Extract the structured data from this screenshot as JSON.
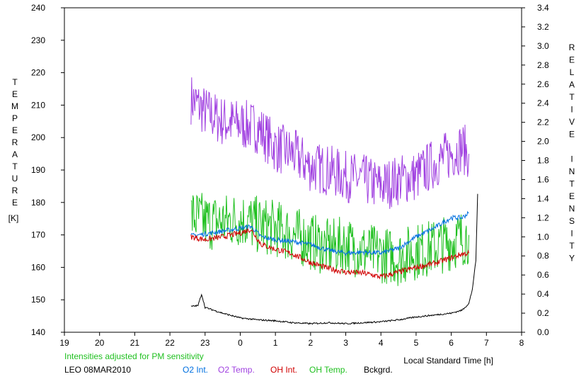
{
  "chart_data": {
    "type": "line",
    "xlabel": "Local Standard Time [h]",
    "ylabel_left": "TEMPERATURE",
    "ylabel_left_unit": "[K]",
    "ylabel_right": "RELATIVE INTENSITY",
    "x_ticks": [
      "19",
      "20",
      "21",
      "22",
      "23",
      "0",
      "1",
      "2",
      "3",
      "4",
      "5",
      "6",
      "7",
      "8"
    ],
    "xlim": [
      19,
      32
    ],
    "ylim_left": [
      140,
      240
    ],
    "y_ticks_left": [
      "140",
      "150",
      "160",
      "170",
      "180",
      "190",
      "200",
      "210",
      "220",
      "230",
      "240"
    ],
    "ylim_right": [
      0.0,
      3.4
    ],
    "y_ticks_right": [
      "0.0",
      "0.2",
      "0.4",
      "0.6",
      "0.8",
      "1.0",
      "1.2",
      "1.4",
      "1.6",
      "1.8",
      "2.0",
      "2.2",
      "2.4",
      "2.6",
      "2.8",
      "3.0",
      "3.2",
      "3.4"
    ],
    "note": "Intensities adjusted for PM sensitivity",
    "station": "LEO 08MAR2010",
    "grid": false,
    "series": [
      {
        "name": "O2 Int.",
        "axis": "right",
        "color": "#0070e0",
        "x": [
          22.6,
          23.0,
          23.5,
          24.0,
          24.3,
          24.6,
          25.0,
          25.5,
          26.0,
          26.5,
          27.0,
          27.5,
          28.0,
          28.5,
          29.0,
          29.5,
          30.0,
          30.3,
          30.5
        ],
        "y": [
          1.01,
          1.03,
          1.06,
          1.09,
          1.11,
          1.0,
          0.97,
          0.95,
          0.92,
          0.86,
          0.83,
          0.84,
          0.83,
          0.88,
          1.0,
          1.09,
          1.2,
          1.2,
          1.25
        ]
      },
      {
        "name": "O2 Temp.",
        "axis": "left",
        "color": "#a040e0",
        "x": [
          22.6,
          23.0,
          23.5,
          24.0,
          24.5,
          25.0,
          25.5,
          26.0,
          26.5,
          27.0,
          27.5,
          28.0,
          28.5,
          29.0,
          29.5,
          30.0,
          30.3,
          30.5
        ],
        "y": [
          212,
          208,
          205,
          204,
          203,
          197,
          195,
          191,
          190,
          188,
          187,
          185,
          187,
          188,
          192,
          195,
          197,
          195
        ]
      },
      {
        "name": "OH Int.",
        "axis": "right",
        "color": "#d00000",
        "x": [
          22.6,
          23.0,
          23.5,
          24.0,
          24.3,
          24.6,
          25.0,
          25.5,
          26.0,
          26.5,
          27.0,
          27.5,
          28.0,
          28.5,
          29.0,
          29.5,
          30.0,
          30.3,
          30.5
        ],
        "y": [
          1.0,
          0.97,
          1.0,
          1.04,
          1.08,
          0.92,
          0.87,
          0.82,
          0.73,
          0.67,
          0.63,
          0.62,
          0.58,
          0.63,
          0.68,
          0.72,
          0.78,
          0.82,
          0.83
        ]
      },
      {
        "name": "OH Temp.",
        "axis": "left",
        "color": "#20c020",
        "x": [
          22.6,
          23.0,
          23.5,
          24.0,
          24.5,
          25.0,
          25.5,
          26.0,
          26.5,
          27.0,
          27.5,
          28.0,
          28.5,
          29.0,
          29.5,
          30.0,
          30.3,
          30.5
        ],
        "y": [
          176,
          174,
          174,
          175,
          173,
          172,
          170,
          168,
          166,
          167,
          165,
          164,
          163,
          165,
          166,
          168,
          169,
          170
        ]
      },
      {
        "name": "Bckgrd.",
        "axis": "right",
        "color": "#000000",
        "x": [
          22.6,
          22.8,
          22.9,
          23.0,
          23.5,
          24.0,
          24.5,
          25.0,
          25.5,
          26.0,
          26.5,
          27.0,
          27.5,
          28.0,
          28.5,
          29.0,
          29.5,
          30.0,
          30.3,
          30.5,
          30.6,
          30.7,
          30.75
        ],
        "y": [
          0.27,
          0.28,
          0.4,
          0.26,
          0.2,
          0.15,
          0.13,
          0.12,
          0.1,
          0.09,
          0.1,
          0.09,
          0.1,
          0.11,
          0.13,
          0.16,
          0.18,
          0.2,
          0.23,
          0.3,
          0.45,
          0.75,
          1.45
        ]
      }
    ]
  }
}
